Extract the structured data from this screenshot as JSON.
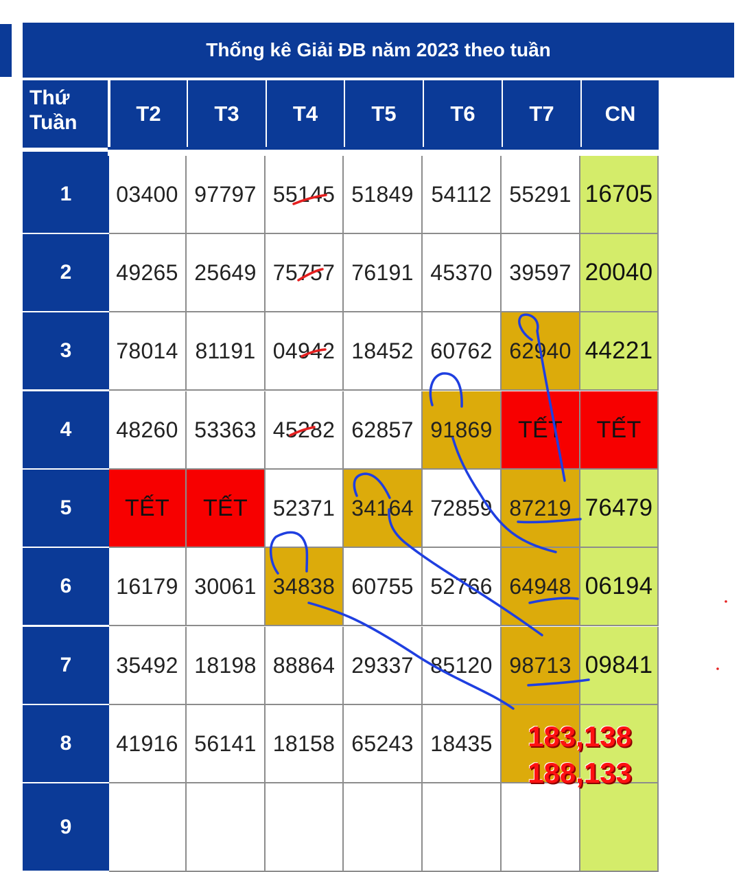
{
  "title": "Thống kê Giải ĐB năm 2023 theo tuần",
  "row_label_header": {
    "line1": "Thứ",
    "line2": "Tuần"
  },
  "day_headers": [
    "T2",
    "T3",
    "T4",
    "T5",
    "T6",
    "T7",
    "CN"
  ],
  "rows": [
    {
      "week": "1",
      "cells": [
        "03400",
        "97797",
        "55145",
        "51849",
        "54112",
        "55291",
        "16705"
      ]
    },
    {
      "week": "2",
      "cells": [
        "49265",
        "25649",
        "75757",
        "76191",
        "45370",
        "39597",
        "20040"
      ]
    },
    {
      "week": "3",
      "cells": [
        "78014",
        "81191",
        "04942",
        "18452",
        "60762",
        "62940",
        "44221"
      ]
    },
    {
      "week": "4",
      "cells": [
        "48260",
        "53363",
        "45282",
        "62857",
        "91869",
        "TẾT",
        "TẾT"
      ]
    },
    {
      "week": "5",
      "cells": [
        "TẾT",
        "TẾT",
        "52371",
        "34164",
        "72859",
        "87219",
        "76479"
      ]
    },
    {
      "week": "6",
      "cells": [
        "16179",
        "30061",
        "34838",
        "60755",
        "52766",
        "64948",
        "06194"
      ]
    },
    {
      "week": "7",
      "cells": [
        "35492",
        "18198",
        "88864",
        "29337",
        "85120",
        "98713",
        "09841"
      ]
    },
    {
      "week": "8",
      "cells": [
        "41916",
        "56141",
        "18158",
        "65243",
        "18435",
        "",
        ""
      ]
    },
    {
      "week": "9",
      "cells": [
        "",
        "",
        "",
        "",
        "",
        "",
        ""
      ]
    }
  ],
  "annotation": {
    "line1": "183,138",
    "line2": "188,133"
  },
  "colors": {
    "header_blue": "#0b3a97",
    "sunday_green": "#d4ec6a",
    "highlight_gold": "#dcab0b",
    "tet_red": "#f70000",
    "pen_blue": "#1f3fe0",
    "pen_red": "#e52020"
  }
}
